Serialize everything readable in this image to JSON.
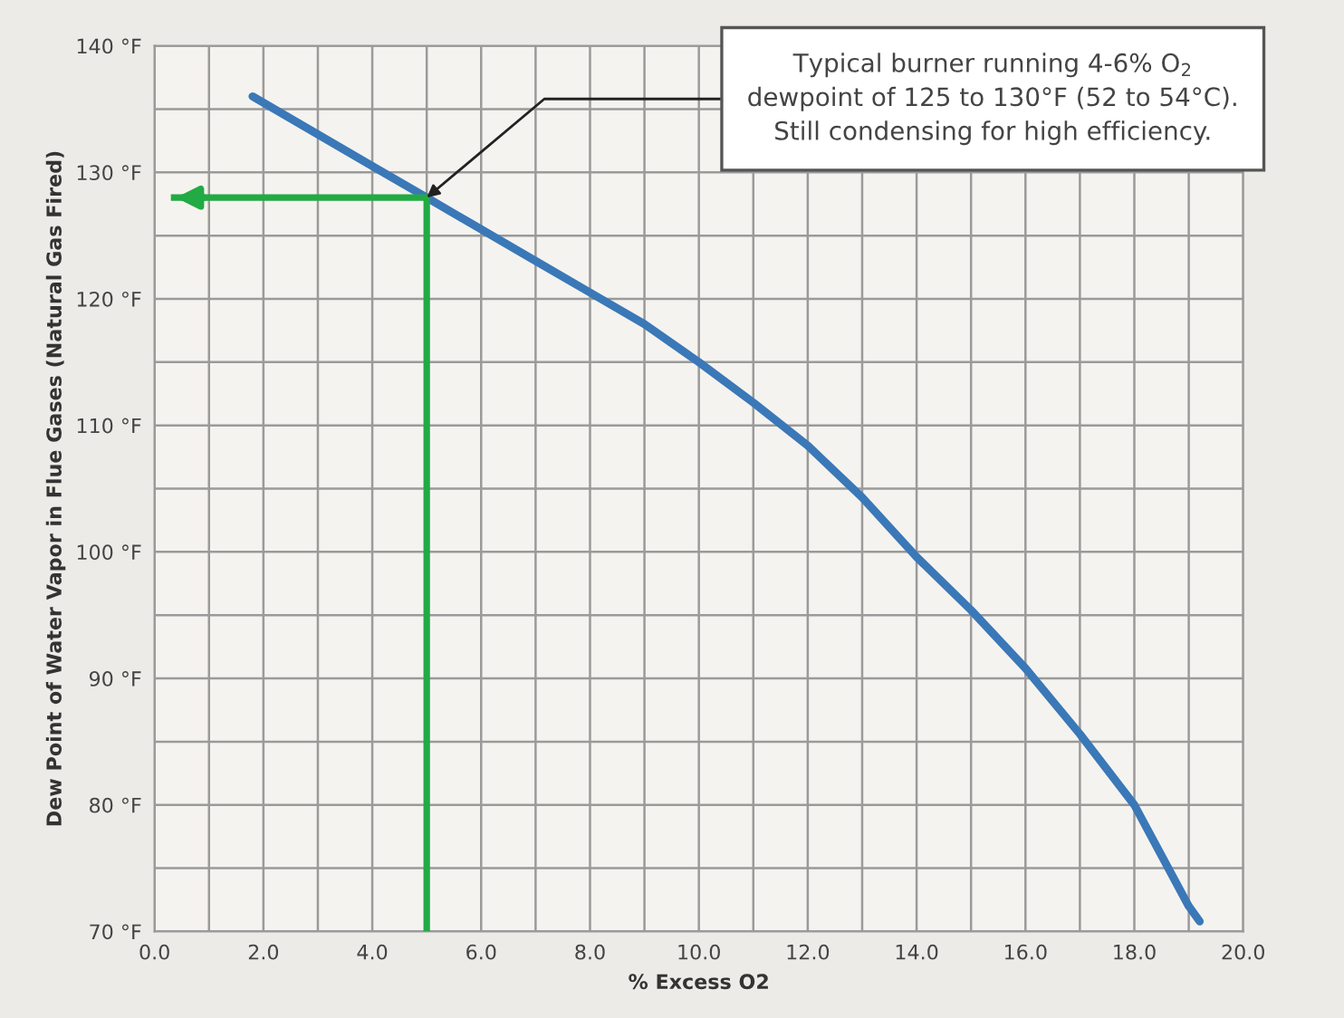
{
  "chart_data": {
    "type": "line",
    "xlabel": "% Excess O2",
    "ylabel": "Dew Point of Water Vapor in Flue Gases (Natural Gas Fired)",
    "xlim": [
      0,
      20
    ],
    "xticks": [
      {
        "value": 0,
        "label": "0.0"
      },
      {
        "value": 1,
        "label": null
      },
      {
        "value": 2,
        "label": "2.0"
      },
      {
        "value": 3,
        "label": null
      },
      {
        "value": 4,
        "label": "4.0"
      },
      {
        "value": 5,
        "label": null
      },
      {
        "value": 6,
        "label": "6.0"
      },
      {
        "value": 7,
        "label": null
      },
      {
        "value": 8,
        "label": "8.0"
      },
      {
        "value": 9,
        "label": null
      },
      {
        "value": 10,
        "label": "10.0"
      },
      {
        "value": 11,
        "label": null
      },
      {
        "value": 12,
        "label": "12.0"
      },
      {
        "value": 13,
        "label": null
      },
      {
        "value": 14,
        "label": "14.0"
      },
      {
        "value": 15,
        "label": null
      },
      {
        "value": 16,
        "label": "16.0"
      },
      {
        "value": 17,
        "label": null
      },
      {
        "value": 18,
        "label": "18.0"
      },
      {
        "value": 19,
        "label": null
      },
      {
        "value": 20,
        "label": "20.0"
      }
    ],
    "ylim": [
      70,
      140
    ],
    "yticks": [
      {
        "value": 70,
        "label": "70 °F"
      },
      {
        "value": 75,
        "label": null
      },
      {
        "value": 80,
        "label": "80 °F"
      },
      {
        "value": 85,
        "label": null
      },
      {
        "value": 90,
        "label": "90 °F"
      },
      {
        "value": 95,
        "label": null
      },
      {
        "value": 100,
        "label": "100 °F"
      },
      {
        "value": 105,
        "label": null
      },
      {
        "value": 110,
        "label": "110 °F"
      },
      {
        "value": 115,
        "label": null
      },
      {
        "value": 120,
        "label": "120 °F"
      },
      {
        "value": 125,
        "label": null
      },
      {
        "value": 130,
        "label": "130 °F"
      },
      {
        "value": 135,
        "label": null
      },
      {
        "value": 140,
        "label": "140 °F"
      }
    ],
    "grid": true,
    "marker": "none",
    "line_style": "solid",
    "series": [
      {
        "color": "#3a78b8",
        "x": [
          1.8,
          3,
          4,
          5,
          6,
          7,
          8,
          9,
          10,
          11,
          12,
          13,
          14,
          15,
          16,
          17,
          18,
          19,
          19.2
        ],
        "values": [
          136,
          133,
          130.5,
          128,
          125.5,
          123,
          120.5,
          118,
          115,
          111.8,
          108.4,
          104.3,
          99.6,
          95.4,
          90.8,
          85.6,
          80,
          72,
          70.8
        ]
      },
      {
        "color": "#22aa44",
        "x": [
          5,
          5,
          0.3
        ],
        "values": [
          70,
          128,
          128
        ]
      }
    ],
    "annotations": [
      {
        "text": "Typical burner running 4-6% O$_{2}$\ndewpoint of 125 to 130°F (52 to 54°C).\nStill condensing for high efficiency.",
        "x": 5,
        "y": 128
      }
    ]
  }
}
